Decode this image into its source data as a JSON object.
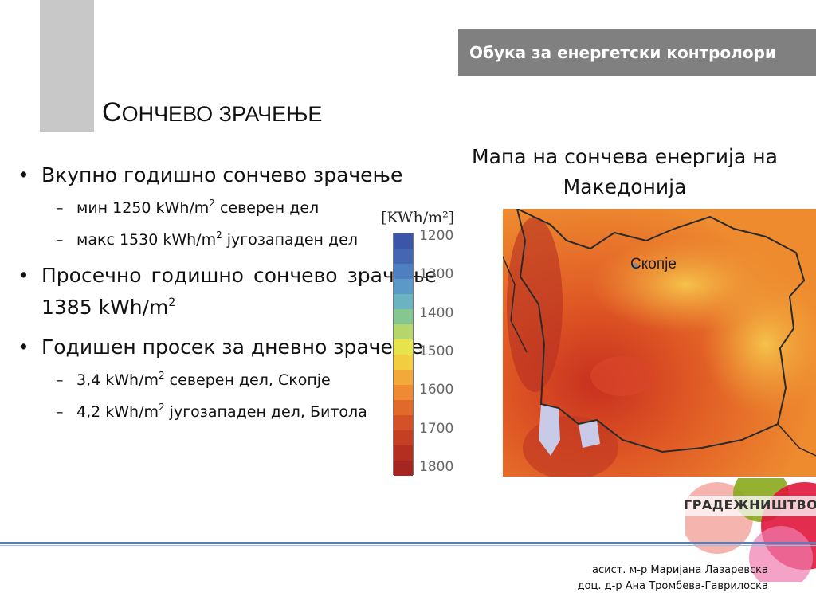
{
  "header": {
    "title": "Обука за енергетски контролори"
  },
  "slide": {
    "title_initial": "С",
    "title_rest": "ОНЧЕВО ЗРАЧЕЊЕ"
  },
  "bullets": {
    "b1": "Вкупно годишно сончево зрачење",
    "b1_sub1_pre": "мин 1250 kWh/m",
    "b1_sub1_sup": "2",
    "b1_sub1_post": " северен дел",
    "b1_sub2_pre": "макс 1530 kWh/m",
    "b1_sub2_sup": "2",
    "b1_sub2_post": " југозападен дел",
    "b2_pre": "Просечно годишно сончево зрачење 1385 kWh/m",
    "b2_sup": "2",
    "b3": "Годишен просек за дневно зрачење",
    "b3_sub1_pre": "3,4 kWh/m",
    "b3_sub1_sup": "2",
    "b3_sub1_post": " северен дел, Скопје",
    "b3_sub2_pre": "4,2 kWh/m",
    "b3_sub2_sup": "2",
    "b3_sub2_post": " југозападен дел, Битола"
  },
  "map": {
    "caption": "Мапа на сончева енергија на Македонија",
    "city_label": "Скопје",
    "legend_unit": "[KWh/m²]",
    "legend_ticks": [
      "1200",
      "1300",
      "1400",
      "1500",
      "1600",
      "1700",
      "1800"
    ],
    "legend_colors": [
      "#3b56a8",
      "#4466b3",
      "#4d7fc1",
      "#5b99c9",
      "#6cb3c1",
      "#86c68f",
      "#b6d56b",
      "#e6e34c",
      "#f2cd3f",
      "#f2a93a",
      "#ee8a32",
      "#e1692a",
      "#d45127",
      "#c53f24",
      "#b52f21",
      "#a52620"
    ]
  },
  "logo": {
    "text": "ГРАДЕЖНИШТВО"
  },
  "footer": {
    "author1": "асист. м-р Маријана Лазаревска",
    "author2": "доц. д-р Ана Тромбева-Гаврилоска"
  }
}
